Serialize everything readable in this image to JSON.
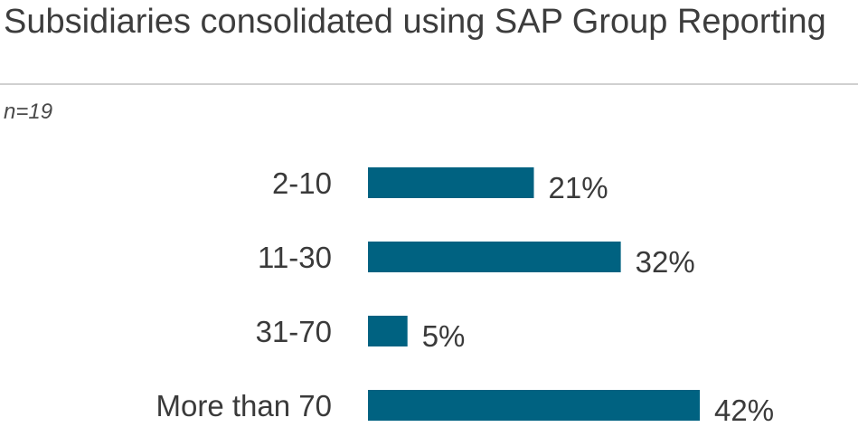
{
  "chart_data": {
    "type": "bar",
    "orientation": "horizontal",
    "title": "Subsidiaries consolidated using SAP Group Reporting",
    "subtitle": "n=19",
    "categories": [
      "2-10",
      "11-30",
      "31-70",
      "More than 70"
    ],
    "values": [
      21,
      32,
      5,
      42
    ],
    "value_labels": [
      "21%",
      "32%",
      "5%",
      "42%"
    ],
    "unit": "%",
    "xlabel": "",
    "ylabel": "",
    "xlim": [
      0,
      42
    ],
    "grid": false,
    "legend": "none",
    "colors": {
      "bar": "#006281",
      "text": "#3a3a3a"
    }
  }
}
